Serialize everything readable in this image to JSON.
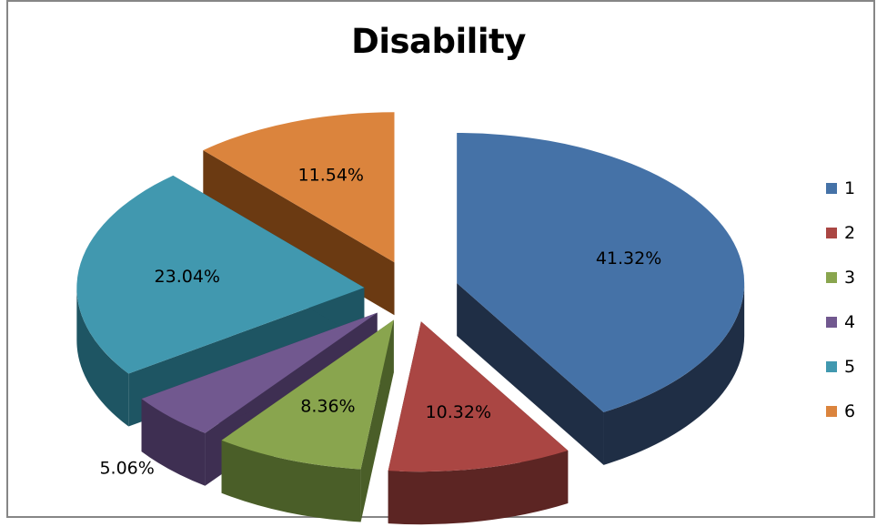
{
  "chart_data": {
    "type": "pie",
    "title": "Disability",
    "categories": [
      "1",
      "2",
      "3",
      "4",
      "5",
      "6"
    ],
    "values": [
      41.32,
      10.32,
      8.36,
      5.06,
      23.04,
      11.54
    ],
    "value_labels": [
      "41.32%",
      "10.32%",
      "8.36%",
      "5.06%",
      "23.04%",
      "11.54%"
    ],
    "colors": [
      "#4572A7",
      "#AA4643",
      "#89A54E",
      "#71588F",
      "#4198AF",
      "#DB843D"
    ],
    "side_colors": [
      "#1F2E45",
      "#5C2523",
      "#4A5E28",
      "#3E2F52",
      "#1E5563",
      "#6B3A12"
    ],
    "exploded": true,
    "legend_position": "right"
  }
}
